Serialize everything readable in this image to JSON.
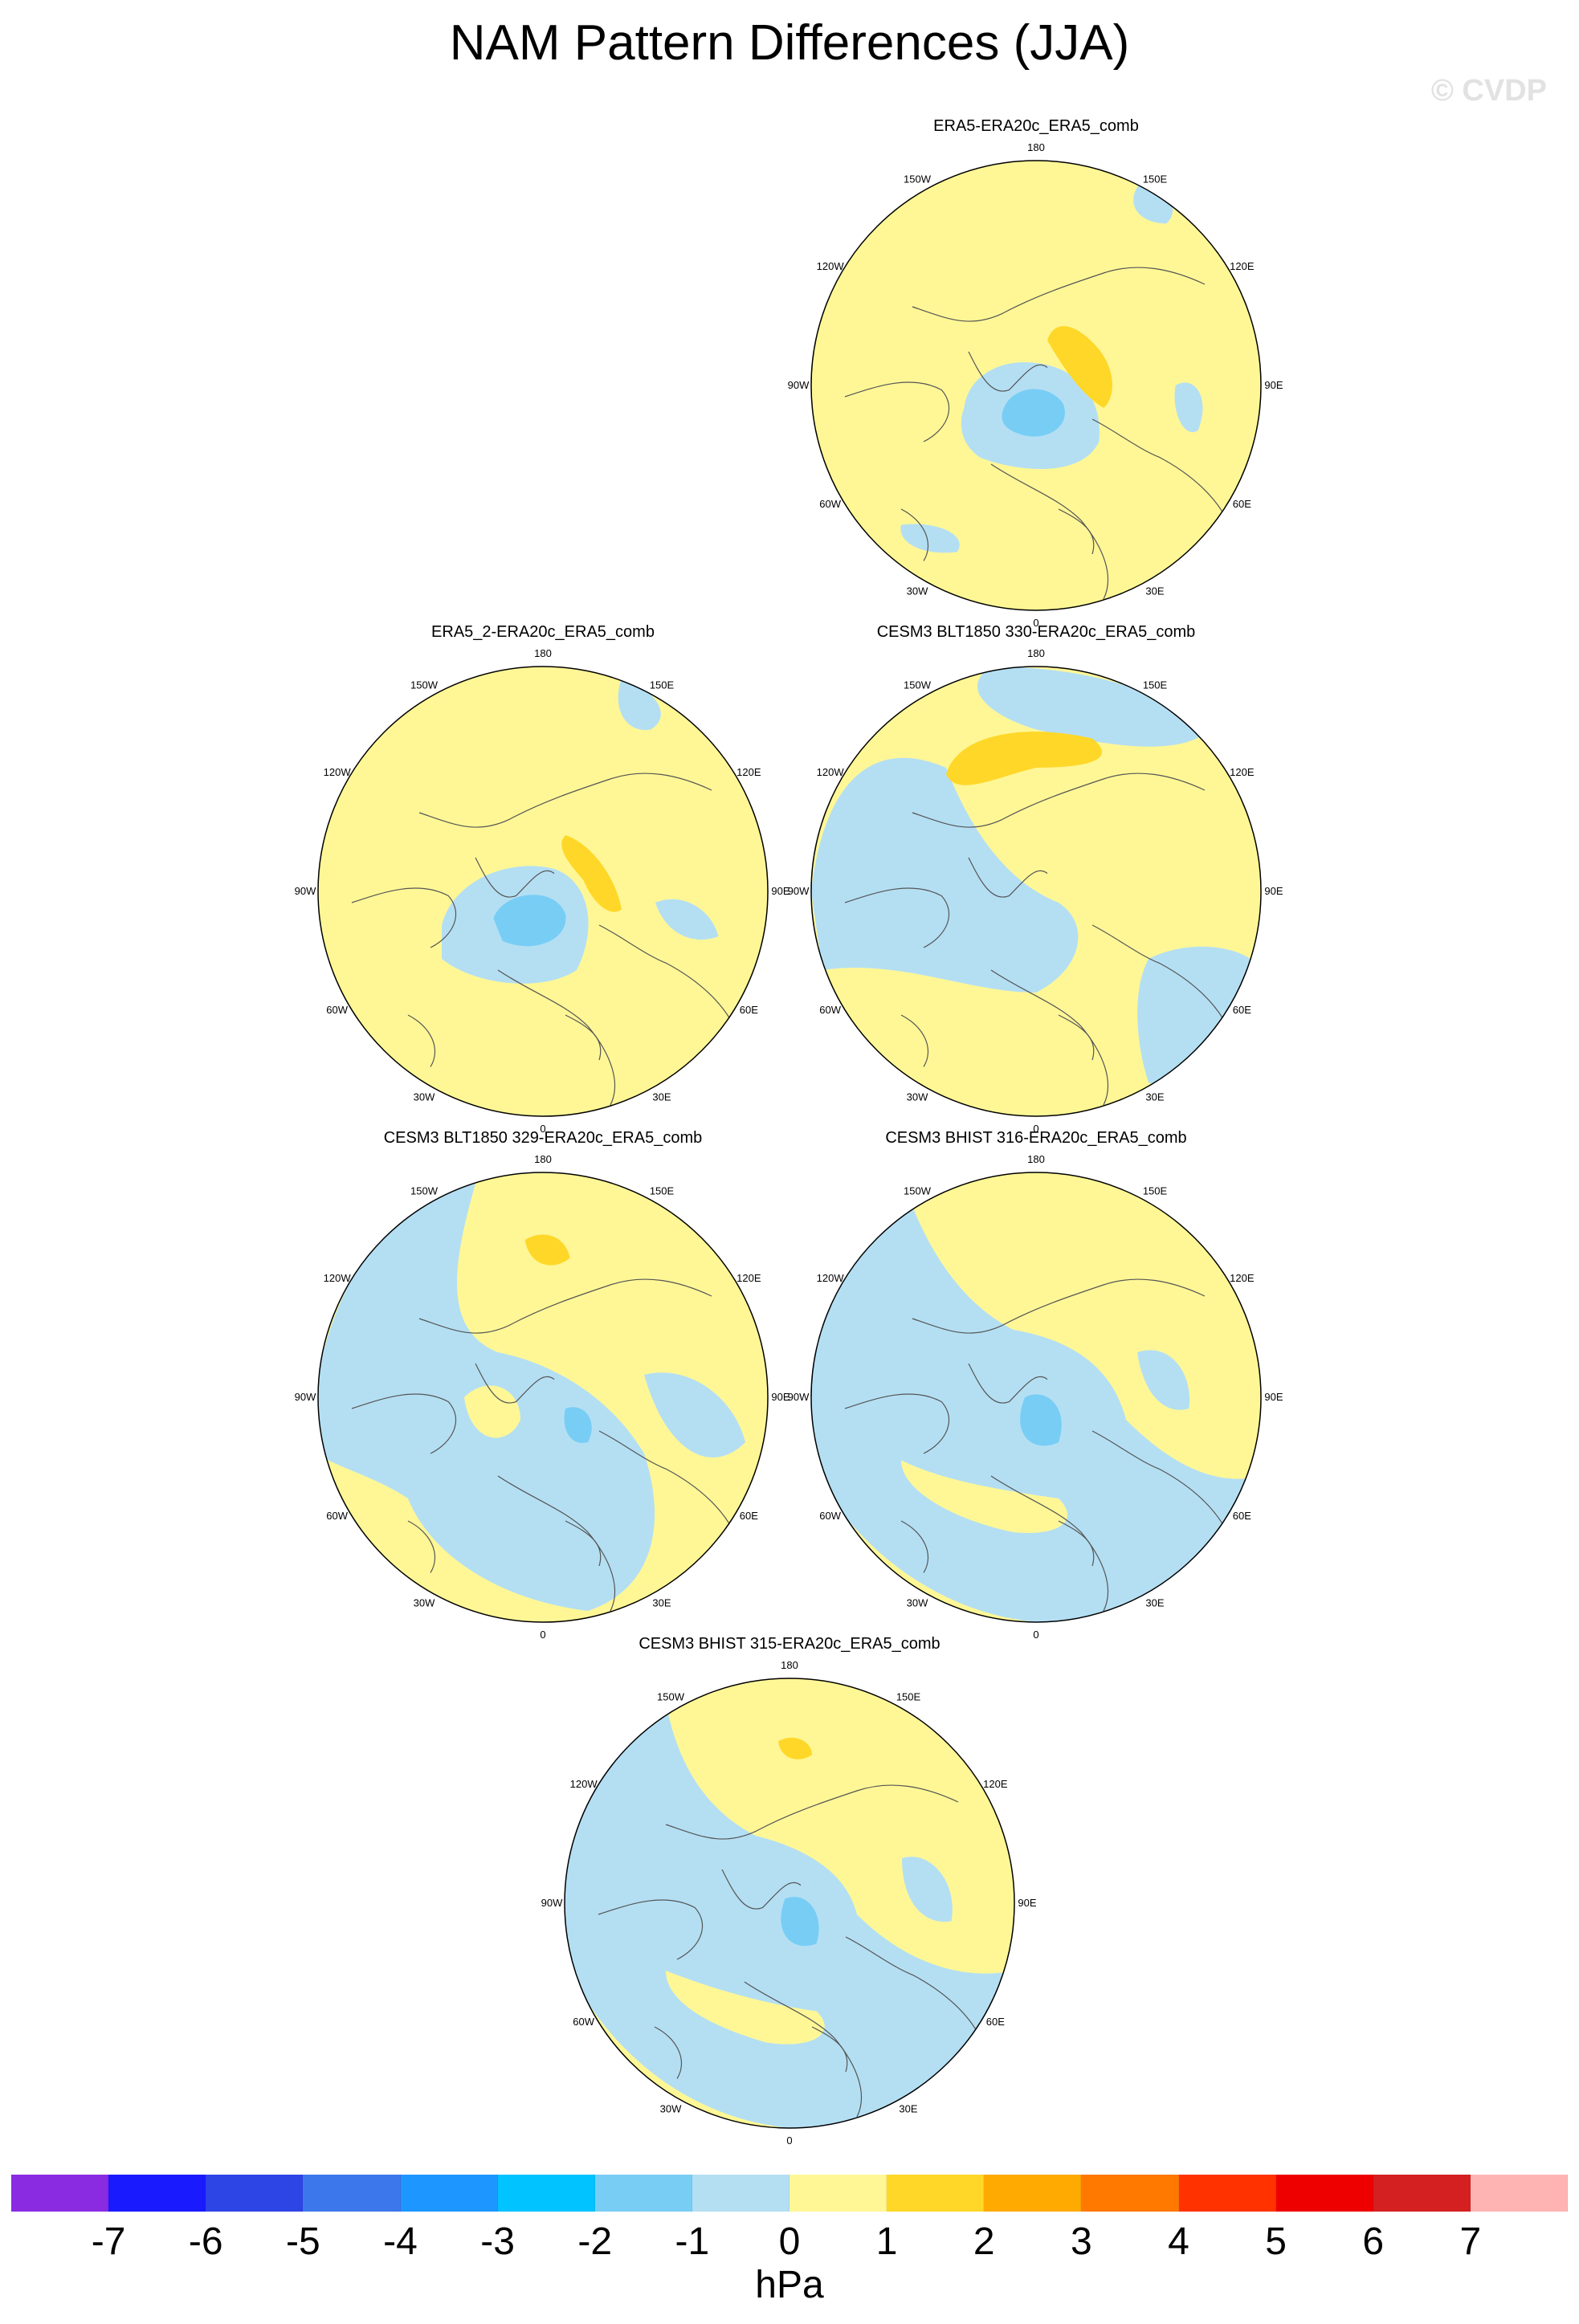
{
  "title": "NAM Pattern Differences (JJA)",
  "copyright": "© CVDP",
  "longitude_labels": [
    "180",
    "150E",
    "120E",
    "90E",
    "60E",
    "30E",
    "0",
    "30W",
    "60W",
    "90W",
    "120W",
    "150W"
  ],
  "panels": [
    {
      "title": "ERA5-ERA20c_ERA5_comb",
      "pattern": "a"
    },
    {
      "title": "ERA5_2-ERA20c_ERA5_comb",
      "pattern": "b"
    },
    {
      "title": "CESM3 BLT1850 330-ERA20c_ERA5_comb",
      "pattern": "c"
    },
    {
      "title": "CESM3 BLT1850 329-ERA20c_ERA5_comb",
      "pattern": "d"
    },
    {
      "title": "CESM3 BHIST 316-ERA20c_ERA5_comb",
      "pattern": "e"
    },
    {
      "title": "CESM3 BHIST 315-ERA20c_ERA5_comb",
      "pattern": "f"
    }
  ],
  "colorbar": {
    "units": "hPa",
    "labels": [
      "-7",
      "-6",
      "-5",
      "-4",
      "-3",
      "-2",
      "-1",
      "0",
      "1",
      "2",
      "3",
      "4",
      "5",
      "6",
      "7"
    ],
    "colors": [
      "#8a2be2",
      "#1a1aff",
      "#2e45e6",
      "#3c78eb",
      "#1e96ff",
      "#00c3ff",
      "#78cdf5",
      "#b4dff3",
      "#fff796",
      "#ffd728",
      "#ffaa00",
      "#ff7800",
      "#ff3200",
      "#ee0000",
      "#d42020",
      "#ffb4b4"
    ]
  }
}
